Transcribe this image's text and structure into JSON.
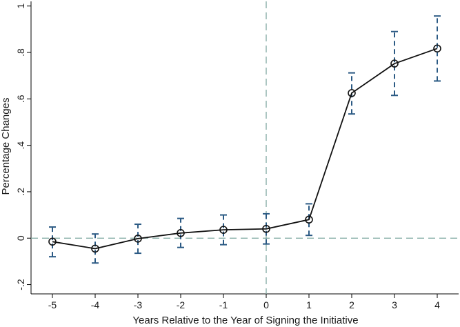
{
  "chart_data": {
    "type": "line",
    "title": "",
    "xlabel": "Years Relative to the Year of Signing the Initiative",
    "ylabel": "Percentage Changes",
    "x_ticks": [
      "-5",
      "-4",
      "-3",
      "-2",
      "-1",
      "0",
      "1",
      "2",
      "3",
      "4"
    ],
    "y_ticks": [
      "-.2",
      "0",
      ".2",
      ".4",
      ".6",
      ".8",
      "1"
    ],
    "xlim": [
      -5.5,
      4.5
    ],
    "ylim": [
      -0.24,
      1.02
    ],
    "grid": false,
    "reference_lines": {
      "x": 0,
      "y": 0
    },
    "series": [
      {
        "x": [
          -5,
          -4,
          -3,
          -2,
          -1,
          0,
          1,
          2,
          3,
          4
        ],
        "y": [
          -0.015,
          -0.045,
          -0.002,
          0.022,
          0.036,
          0.04,
          0.08,
          0.625,
          0.752,
          0.817
        ],
        "ci_low": [
          -0.08,
          -0.107,
          -0.065,
          -0.04,
          -0.028,
          -0.025,
          0.012,
          0.535,
          0.615,
          0.677
        ],
        "ci_high": [
          0.048,
          0.018,
          0.06,
          0.085,
          0.1,
          0.105,
          0.148,
          0.712,
          0.89,
          0.957
        ]
      }
    ],
    "colors": {
      "line": "#111111",
      "error_bar": "#2b5a84",
      "reference": "#7fa7a0",
      "axis": "#000000"
    }
  }
}
